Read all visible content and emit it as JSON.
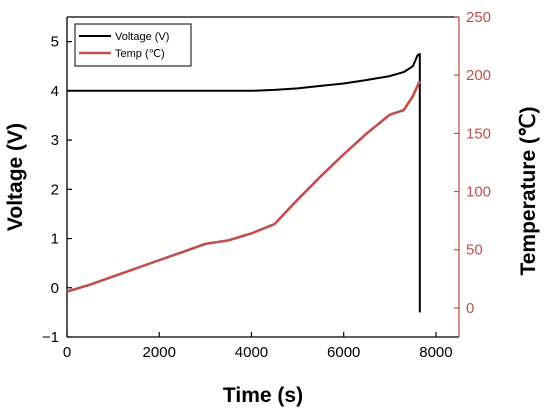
{
  "chart_data": {
    "type": "line",
    "xlabel": "Time (s)",
    "ylabel_left": "Voltage (V)",
    "ylabel_right": "Temperature (℃)",
    "xlim": [
      0,
      8500
    ],
    "ylim_left": [
      -1,
      5.5
    ],
    "ylim_right": [
      -25,
      250
    ],
    "x_ticks": [
      0,
      2000,
      4000,
      6000,
      8000
    ],
    "y_left_ticks": [
      -1,
      0,
      1,
      2,
      3,
      4,
      5
    ],
    "y_right_ticks": [
      0,
      50,
      100,
      150,
      200,
      250
    ],
    "legend": {
      "position": "top-left"
    },
    "grid": false,
    "series": [
      {
        "name": "Voltage (V)",
        "axis": "left",
        "color": "#000000",
        "x": [
          0,
          1000,
          2000,
          3000,
          4000,
          4500,
          5000,
          5500,
          6000,
          6500,
          7000,
          7300,
          7500,
          7600,
          7650,
          7650
        ],
        "y": [
          4.0,
          4.0,
          4.0,
          4.0,
          4.0,
          4.02,
          4.05,
          4.1,
          4.15,
          4.22,
          4.3,
          4.38,
          4.5,
          4.72,
          4.75,
          -0.5
        ]
      },
      {
        "name": "Temp (℃)",
        "axis": "right",
        "color": "#c0504d",
        "x": [
          0,
          500,
          1000,
          1500,
          2000,
          2500,
          3000,
          3500,
          4000,
          4500,
          5000,
          5500,
          6000,
          6500,
          7000,
          7300,
          7500,
          7650
        ],
        "y": [
          14,
          20,
          27,
          34,
          41,
          48,
          55,
          58,
          64,
          72,
          93,
          113,
          132,
          150,
          166,
          170,
          182,
          195
        ]
      }
    ]
  }
}
